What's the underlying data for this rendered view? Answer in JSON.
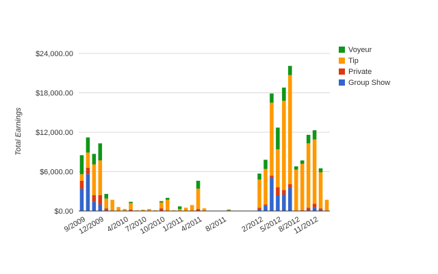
{
  "chart_data": {
    "type": "bar",
    "stacked": true,
    "title": "",
    "xlabel": "",
    "ylabel": "Total Earnings",
    "ylim": [
      0,
      24000
    ],
    "y_ticks": [
      {
        "value": 0,
        "label": "$0.00"
      },
      {
        "value": 6000,
        "label": "$6,000.00"
      },
      {
        "value": 12000,
        "label": "$12,000.00"
      },
      {
        "value": 18000,
        "label": "$18,000.00"
      },
      {
        "value": 24000,
        "label": "$24,000.00"
      }
    ],
    "categories": [
      "9/2009",
      "10/2009",
      "11/2009",
      "12/2009",
      "1/2010",
      "2/2010",
      "3/2010",
      "4/2010",
      "5/2010",
      "6/2010",
      "7/2010",
      "8/2010",
      "9/2010",
      "10/2010",
      "11/2010",
      "12/2010",
      "1/2011",
      "2/2011",
      "3/2011",
      "4/2011",
      "5/2011",
      "6/2011",
      "7/2011",
      "8/2011",
      "9/2011",
      "10/2011",
      "11/2011",
      "12/2011",
      "1/2012",
      "2/2012",
      "3/2012",
      "4/2012",
      "5/2012",
      "6/2012",
      "7/2012",
      "8/2012",
      "9/2012",
      "10/2012",
      "11/2012",
      "12/2012",
      "1/2013"
    ],
    "x_tick_labels": [
      {
        "index": 0,
        "label": "9/2009"
      },
      {
        "index": 3,
        "label": "12/2009"
      },
      {
        "index": 7,
        "label": "4/2010"
      },
      {
        "index": 10,
        "label": "7/2010"
      },
      {
        "index": 13,
        "label": "10/2010"
      },
      {
        "index": 16,
        "label": "1/2011"
      },
      {
        "index": 19,
        "label": "4/2011"
      },
      {
        "index": 23,
        "label": "8/2011"
      },
      {
        "index": 29,
        "label": "2/2012"
      },
      {
        "index": 32,
        "label": "5/2012"
      },
      {
        "index": 35,
        "label": "8/2012"
      },
      {
        "index": 38,
        "label": "11/2012"
      }
    ],
    "legend_position": "right",
    "series": [
      {
        "name": "Group Show",
        "color": "#3366cc",
        "values": [
          3400,
          5600,
          1400,
          1000,
          100,
          0,
          0,
          0,
          0,
          0,
          0,
          0,
          0,
          0,
          0,
          0,
          0,
          0,
          0,
          0,
          0,
          0,
          0,
          0,
          0,
          0,
          0,
          0,
          0,
          300,
          800,
          5000,
          2400,
          2500,
          3500,
          0,
          0,
          100,
          500,
          100,
          0
        ]
      },
      {
        "name": "Private",
        "color": "#dc3912",
        "values": [
          1200,
          1000,
          1000,
          1400,
          300,
          0,
          0,
          0,
          200,
          0,
          0,
          0,
          0,
          400,
          0,
          0,
          0,
          0,
          0,
          300,
          0,
          0,
          0,
          0,
          0,
          0,
          0,
          0,
          0,
          200,
          200,
          400,
          1200,
          700,
          600,
          0,
          100,
          400,
          600,
          300,
          0
        ]
      },
      {
        "name": "Tip",
        "color": "#ff9900",
        "values": [
          1000,
          2300,
          4700,
          5300,
          1500,
          1700,
          600,
          300,
          1000,
          100,
          200,
          300,
          100,
          900,
          1700,
          100,
          300,
          500,
          900,
          3100,
          400,
          0,
          0,
          0,
          100,
          0,
          0,
          0,
          0,
          4300,
          5400,
          11100,
          5800,
          13600,
          16600,
          6300,
          7100,
          9800,
          9800,
          5500,
          1700
        ]
      },
      {
        "name": "Voyeur",
        "color": "#109618",
        "values": [
          2900,
          2300,
          1600,
          2600,
          700,
          0,
          0,
          0,
          200,
          0,
          0,
          0,
          0,
          200,
          300,
          0,
          400,
          0,
          0,
          1200,
          0,
          0,
          0,
          0,
          100,
          0,
          0,
          0,
          0,
          900,
          1400,
          1400,
          3300,
          2000,
          1400,
          500,
          500,
          1300,
          1400,
          600,
          0
        ]
      }
    ],
    "legend_order": [
      "Voyeur",
      "Tip",
      "Private",
      "Group Show"
    ]
  }
}
